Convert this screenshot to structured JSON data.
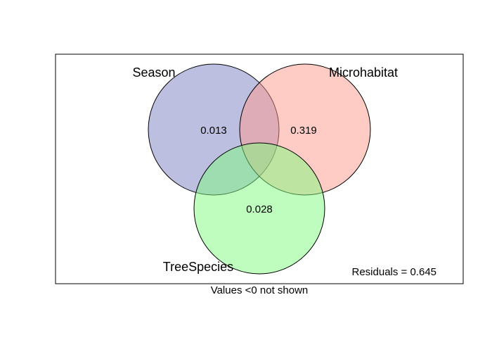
{
  "sets": [
    {
      "id": "season",
      "label": "Season",
      "fill": "#7b7fc4"
    },
    {
      "id": "microhabitat",
      "label": "Microhabitat",
      "fill": "#ff9a8c"
    },
    {
      "id": "treespecies",
      "label": "TreeSpecies",
      "fill": "#7dfc7d"
    }
  ],
  "values": {
    "season_only": "0.013",
    "microhabitat_only": "0.319",
    "treespecies_only": "0.028"
  },
  "residuals": "Residuals = 0.645",
  "note": "Values <0 not shown"
}
